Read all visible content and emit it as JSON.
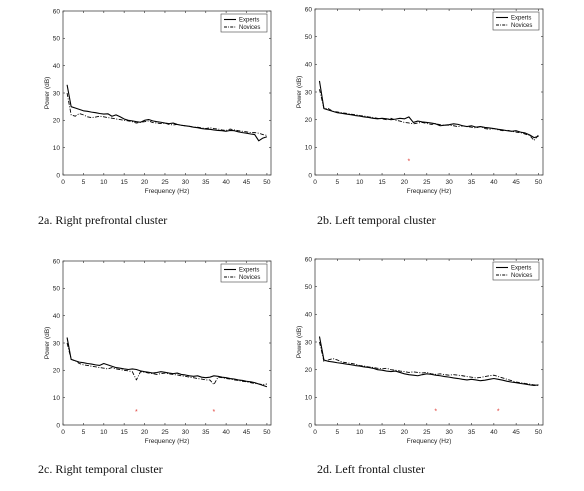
{
  "figure": {
    "captions": [
      "2a. Right prefrontal cluster",
      "2b. Left temporal cluster",
      "2c. Right temporal cluster",
      "2d. Left frontal cluster"
    ]
  },
  "style": {
    "axis_color": "#444444",
    "line_color": "#000000",
    "marker_color": "#e0403a"
  },
  "chart_data": [
    {
      "type": "line",
      "xlabel": "Frequency (Hz)",
      "ylabel": "Power (dB)",
      "xlim": [
        0,
        51
      ],
      "ylim": [
        0,
        60
      ],
      "xticks": [
        0,
        5,
        10,
        15,
        20,
        25,
        30,
        35,
        40,
        45,
        50
      ],
      "yticks": [
        0,
        10,
        20,
        30,
        40,
        50,
        60
      ],
      "legend_position": "top-right",
      "x": [
        1,
        2,
        3,
        4,
        5,
        6,
        7,
        8,
        9,
        10,
        11,
        12,
        13,
        14,
        15,
        16,
        17,
        18,
        19,
        20,
        21,
        22,
        23,
        24,
        25,
        26,
        27,
        28,
        29,
        30,
        31,
        32,
        33,
        34,
        35,
        36,
        37,
        38,
        39,
        40,
        41,
        42,
        43,
        44,
        45,
        46,
        47,
        48,
        49,
        50
      ],
      "series": [
        {
          "name": "Experts",
          "style": "solid",
          "values": [
            33,
            25,
            24.5,
            24,
            23.5,
            23.3,
            23,
            22.8,
            22.5,
            22.3,
            22.4,
            21.5,
            22,
            21.3,
            20.5,
            20,
            19.8,
            19.5,
            19.3,
            20,
            20.3,
            19.8,
            19.5,
            19.3,
            19,
            18.8,
            19,
            18.5,
            18.2,
            18,
            17.8,
            17.5,
            17.3,
            17,
            16.8,
            16.7,
            16.5,
            16.3,
            16.2,
            16,
            16.3,
            16.2,
            15.8,
            15.5,
            15.3,
            15,
            14.8,
            12.5,
            13.5,
            14
          ]
        },
        {
          "name": "Novices",
          "style": "dashdot",
          "values": [
            30,
            22,
            21.5,
            22.5,
            22,
            21.3,
            21,
            21.2,
            21.5,
            21.3,
            21,
            20.8,
            20.5,
            20.3,
            20,
            19.8,
            19.5,
            19,
            19.3,
            19.5,
            19.8,
            19.2,
            19,
            18.8,
            19,
            18.5,
            18.3,
            18.5,
            18.2,
            18,
            17.8,
            17.5,
            17.5,
            17.2,
            17,
            17.3,
            17,
            16.8,
            16.5,
            16.3,
            16.8,
            16.5,
            16.2,
            16,
            15.8,
            15.5,
            15.5,
            15.3,
            14.8,
            14.5
          ]
        }
      ],
      "significance_x": []
    },
    {
      "type": "line",
      "xlabel": "Frequency (Hz)",
      "ylabel": "Power (dB)",
      "xlim": [
        0,
        51
      ],
      "ylim": [
        0,
        60
      ],
      "xticks": [
        0,
        5,
        10,
        15,
        20,
        25,
        30,
        35,
        40,
        45,
        50
      ],
      "yticks": [
        0,
        10,
        20,
        30,
        40,
        50,
        60
      ],
      "legend_position": "top-right",
      "x": [
        1,
        2,
        3,
        4,
        5,
        6,
        7,
        8,
        9,
        10,
        11,
        12,
        13,
        14,
        15,
        16,
        17,
        18,
        19,
        20,
        21,
        22,
        23,
        24,
        25,
        26,
        27,
        28,
        29,
        30,
        31,
        32,
        33,
        34,
        35,
        36,
        37,
        38,
        39,
        40,
        41,
        42,
        43,
        44,
        45,
        46,
        47,
        48,
        49,
        50
      ],
      "series": [
        {
          "name": "Experts",
          "style": "solid",
          "values": [
            34,
            24,
            23.5,
            23,
            22.5,
            22.3,
            22,
            21.8,
            21.5,
            21.3,
            21,
            20.8,
            20.5,
            20.3,
            20.5,
            20.3,
            20,
            20.2,
            20.5,
            20.3,
            21,
            19,
            19.5,
            19.2,
            19,
            18.8,
            18.5,
            17.8,
            18,
            18.2,
            18.5,
            18.3,
            17.8,
            17.5,
            17.8,
            17.3,
            17.5,
            17.2,
            17,
            16.8,
            16.5,
            16.3,
            16,
            15.8,
            16,
            15.5,
            15.2,
            14.5,
            13.5,
            14
          ]
        },
        {
          "name": "Novices",
          "style": "dashdot",
          "values": [
            31,
            24,
            24,
            23,
            22.8,
            22.5,
            22.3,
            22,
            21.8,
            21.5,
            21.3,
            21,
            20.8,
            20.5,
            20.3,
            20,
            20.5,
            19.8,
            19.5,
            19,
            18.8,
            18.5,
            18.8,
            19,
            18.6,
            18.3,
            18.5,
            18.2,
            18,
            18,
            17.8,
            17.5,
            17.8,
            17.5,
            17.3,
            17,
            17.5,
            16.8,
            16.5,
            16.8,
            16.3,
            16,
            16.2,
            15.8,
            15.5,
            15.3,
            14.8,
            14.3,
            12.5,
            14.5
          ]
        }
      ],
      "significance_x": [
        21
      ]
    },
    {
      "type": "line",
      "xlabel": "Frequency (Hz)",
      "ylabel": "Power (dB)",
      "xlim": [
        0,
        51
      ],
      "ylim": [
        0,
        60
      ],
      "xticks": [
        0,
        5,
        10,
        15,
        20,
        25,
        30,
        35,
        40,
        45,
        50
      ],
      "yticks": [
        0,
        10,
        20,
        30,
        40,
        50,
        60
      ],
      "legend_position": "top-right",
      "x": [
        1,
        2,
        3,
        4,
        5,
        6,
        7,
        8,
        9,
        10,
        11,
        12,
        13,
        14,
        15,
        16,
        17,
        18,
        19,
        20,
        21,
        22,
        23,
        24,
        25,
        26,
        27,
        28,
        29,
        30,
        31,
        32,
        33,
        34,
        35,
        36,
        37,
        38,
        39,
        40,
        41,
        42,
        43,
        44,
        45,
        46,
        47,
        48,
        49,
        50
      ],
      "series": [
        {
          "name": "Experts",
          "style": "solid",
          "values": [
            32,
            24,
            23.5,
            23,
            22.8,
            22.5,
            22.3,
            22,
            21.8,
            22.5,
            22,
            21.5,
            21,
            20.8,
            20.5,
            20.3,
            20.5,
            20.3,
            19.8,
            19.5,
            19.3,
            19,
            19.2,
            19.5,
            19.3,
            19,
            18.8,
            19,
            18.5,
            18.3,
            18,
            17.8,
            18,
            17.5,
            17.3,
            17.5,
            18,
            17.8,
            17.5,
            17.3,
            17,
            16.8,
            16.5,
            16.3,
            16,
            15.8,
            15.5,
            15,
            14.5,
            14
          ]
        },
        {
          "name": "Novices",
          "style": "dashdot",
          "values": [
            30,
            24,
            23.5,
            22.5,
            22,
            21.8,
            21.5,
            21.3,
            21,
            20.8,
            20.5,
            21,
            20.5,
            20.3,
            20,
            19.8,
            19.5,
            16.5,
            19.5,
            19.3,
            19,
            18.8,
            18.5,
            18.8,
            19,
            18.7,
            18.5,
            18.3,
            18,
            17.8,
            17.5,
            17.3,
            17,
            16.8,
            16.5,
            16.5,
            14.8,
            17.5,
            17.3,
            17,
            16.8,
            16.5,
            16.3,
            16,
            15.8,
            15.5,
            15.2,
            15,
            14.8,
            15
          ]
        }
      ],
      "significance_x": [
        18,
        37
      ]
    },
    {
      "type": "line",
      "xlabel": "Frequency (Hz)",
      "ylabel": "Power (dB)",
      "xlim": [
        0,
        51
      ],
      "ylim": [
        0,
        60
      ],
      "xticks": [
        0,
        5,
        10,
        15,
        20,
        25,
        30,
        35,
        40,
        45,
        50
      ],
      "yticks": [
        0,
        10,
        20,
        30,
        40,
        50,
        60
      ],
      "legend_position": "top-right",
      "x": [
        1,
        2,
        3,
        4,
        5,
        6,
        7,
        8,
        9,
        10,
        11,
        12,
        13,
        14,
        15,
        16,
        17,
        18,
        19,
        20,
        21,
        22,
        23,
        24,
        25,
        26,
        27,
        28,
        29,
        30,
        31,
        32,
        33,
        34,
        35,
        36,
        37,
        38,
        39,
        40,
        41,
        42,
        43,
        44,
        45,
        46,
        47,
        48,
        49,
        50
      ],
      "series": [
        {
          "name": "Experts",
          "style": "solid",
          "values": [
            32,
            23.5,
            23,
            22.8,
            22.5,
            22.3,
            22,
            21.8,
            21.5,
            21.3,
            21,
            20.8,
            20.5,
            20,
            19.8,
            19.5,
            19.3,
            19.5,
            19,
            18.5,
            18.2,
            18,
            17.8,
            18.2,
            18.5,
            18.3,
            18,
            17.8,
            17.5,
            17.3,
            17,
            16.8,
            16.5,
            16.3,
            16.5,
            16.3,
            16,
            16.2,
            16.5,
            16.8,
            16.5,
            16.2,
            15.8,
            15.5,
            15.3,
            15,
            14.8,
            14.5,
            14.3,
            14.5
          ]
        },
        {
          "name": "Novices",
          "style": "dashdot",
          "values": [
            30,
            23,
            23.5,
            24,
            23.5,
            22.8,
            22.5,
            22.3,
            22,
            21.5,
            21.3,
            21,
            20.8,
            20.5,
            20.3,
            20.5,
            20,
            19.8,
            19.5,
            19.3,
            19,
            19.2,
            19,
            18.8,
            19,
            18.5,
            18.3,
            18.5,
            18.2,
            18,
            18.2,
            18,
            17.8,
            17.5,
            17.3,
            17,
            17.2,
            17.5,
            17.8,
            18,
            17.5,
            17,
            16.5,
            16,
            15.5,
            15.3,
            15,
            14.8,
            14.5,
            14.3
          ]
        }
      ],
      "significance_x": [
        27,
        41
      ]
    }
  ]
}
